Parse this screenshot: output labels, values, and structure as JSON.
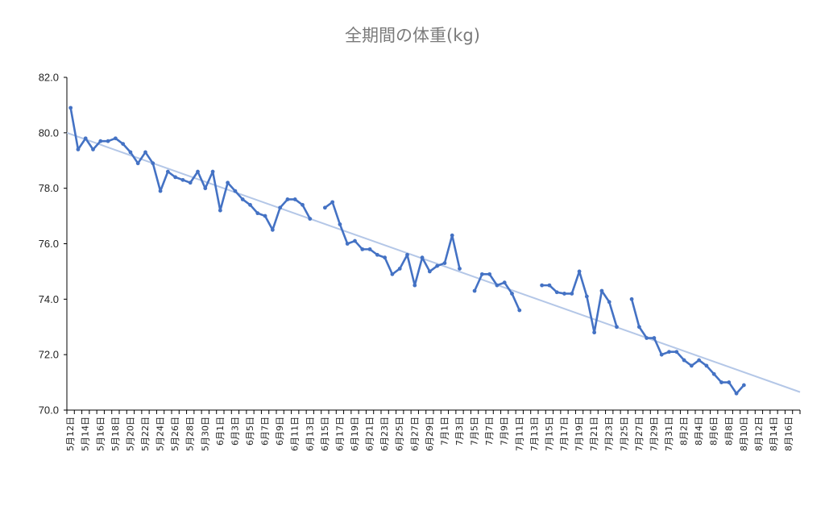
{
  "chart_data": {
    "type": "line",
    "title": "全期間の体重(kg)",
    "xlabel": "",
    "ylabel": "",
    "ylim": [
      70.0,
      82.0
    ],
    "y_ticks": [
      "70.0",
      "72.0",
      "74.0",
      "76.0",
      "78.0",
      "80.0",
      "82.0"
    ],
    "x_start": "5月12日",
    "x_end": "8月17日",
    "x_tick_labels": [
      "5月12日",
      "5月14日",
      "5月16日",
      "5月18日",
      "5月20日",
      "5月22日",
      "5月24日",
      "5月26日",
      "5月28日",
      "5月30日",
      "6月1日",
      "6月3日",
      "6月5日",
      "6月7日",
      "6月9日",
      "6月11日",
      "6月13日",
      "6月15日",
      "6月17日",
      "6月19日",
      "6月21日",
      "6月23日",
      "6月25日",
      "6月27日",
      "6月29日",
      "7月1日",
      "7月3日",
      "7月5日",
      "7月7日",
      "7月9日",
      "7月11日",
      "7月13日",
      "7月15日",
      "7月17日",
      "7月19日",
      "7月21日",
      "7月23日",
      "7月25日",
      "7月27日",
      "7月29日",
      "7月31日",
      "8月2日",
      "8月4日",
      "8月6日",
      "8月8日",
      "8月10日",
      "8月12日",
      "8月14日",
      "8月16日"
    ],
    "grid": false,
    "colors": {
      "series": "#4472c4",
      "trendline": "#b4c7e7",
      "axis": "#000000",
      "title": "#7a7a7a"
    },
    "series": [
      {
        "points": [
          [
            "5月12日",
            80.9
          ],
          [
            "5月13日",
            79.4
          ],
          [
            "5月14日",
            79.8
          ],
          [
            "5月15日",
            79.4
          ],
          [
            "5月16日",
            79.7
          ],
          [
            "5月17日",
            79.7
          ],
          [
            "5月18日",
            79.8
          ],
          [
            "5月19日",
            79.6
          ],
          [
            "5月20日",
            79.3
          ],
          [
            "5月21日",
            78.9
          ],
          [
            "5月22日",
            79.3
          ],
          [
            "5月23日",
            78.9
          ],
          [
            "5月24日",
            77.9
          ],
          [
            "5月25日",
            78.6
          ],
          [
            "5月26日",
            78.4
          ],
          [
            "5月27日",
            78.3
          ],
          [
            "5月28日",
            78.2
          ],
          [
            "5月29日",
            78.6
          ],
          [
            "5月30日",
            78.0
          ],
          [
            "5月31日",
            78.6
          ],
          [
            "6月1日",
            77.2
          ],
          [
            "6月2日",
            78.2
          ],
          [
            "6月3日",
            77.9
          ],
          [
            "6月4日",
            77.6
          ],
          [
            "6月5日",
            77.4
          ],
          [
            "6月6日",
            77.1
          ],
          [
            "6月7日",
            77.0
          ],
          [
            "6月8日",
            76.5
          ],
          [
            "6月9日",
            77.3
          ],
          [
            "6月10日",
            77.6
          ],
          [
            "6月11日",
            77.6
          ],
          [
            "6月12日",
            77.4
          ],
          [
            "6月13日",
            76.9
          ],
          [
            "6月14日",
            null
          ],
          [
            "6月15日",
            77.3
          ],
          [
            "6月16日",
            77.5
          ],
          [
            "6月17日",
            76.7
          ],
          [
            "6月18日",
            76.0
          ],
          [
            "6月19日",
            76.1
          ],
          [
            "6月20日",
            75.8
          ],
          [
            "6月21日",
            75.8
          ],
          [
            "6月22日",
            75.6
          ],
          [
            "6月23日",
            75.5
          ],
          [
            "6月24日",
            74.9
          ],
          [
            "6月25日",
            75.1
          ],
          [
            "6月26日",
            75.6
          ],
          [
            "6月27日",
            74.5
          ],
          [
            "6月28日",
            75.5
          ],
          [
            "6月29日",
            75.0
          ],
          [
            "6月30日",
            75.2
          ],
          [
            "7月1日",
            75.3
          ],
          [
            "7月2日",
            76.3
          ],
          [
            "7月3日",
            75.1
          ],
          [
            "7月4日",
            null
          ],
          [
            "7月5日",
            74.3
          ],
          [
            "7月6日",
            74.9
          ],
          [
            "7月7日",
            74.9
          ],
          [
            "7月8日",
            74.5
          ],
          [
            "7月9日",
            74.6
          ],
          [
            "7月10日",
            74.2
          ],
          [
            "7月11日",
            73.6
          ],
          [
            "7月12日",
            null
          ],
          [
            "7月13日",
            null
          ],
          [
            "7月14日",
            74.5
          ],
          [
            "7月15日",
            74.5
          ],
          [
            "7月16日",
            74.25
          ],
          [
            "7月17日",
            74.2
          ],
          [
            "7月18日",
            74.2
          ],
          [
            "7月19日",
            75.0
          ],
          [
            "7月20日",
            74.1
          ],
          [
            "7月21日",
            72.8
          ],
          [
            "7月22日",
            74.3
          ],
          [
            "7月23日",
            73.9
          ],
          [
            "7月24日",
            73.0
          ],
          [
            "7月25日",
            null
          ],
          [
            "7月26日",
            74.0
          ],
          [
            "7月27日",
            73.0
          ],
          [
            "7月28日",
            72.6
          ],
          [
            "7月29日",
            72.6
          ],
          [
            "7月30日",
            72.0
          ],
          [
            "7月31日",
            72.1
          ],
          [
            "8月1日",
            72.1
          ],
          [
            "8月2日",
            71.8
          ],
          [
            "8月3日",
            71.6
          ],
          [
            "8月4日",
            71.8
          ],
          [
            "8月5日",
            71.6
          ],
          [
            "8月6日",
            71.3
          ],
          [
            "8月7日",
            71.0
          ],
          [
            "8月8日",
            71.0
          ],
          [
            "8月9日",
            70.6
          ],
          [
            "8月10日",
            70.9
          ]
        ]
      }
    ],
    "trendline": {
      "from": [
        "5月12日",
        80.0
      ],
      "to": [
        "8月17日",
        70.65
      ]
    }
  }
}
